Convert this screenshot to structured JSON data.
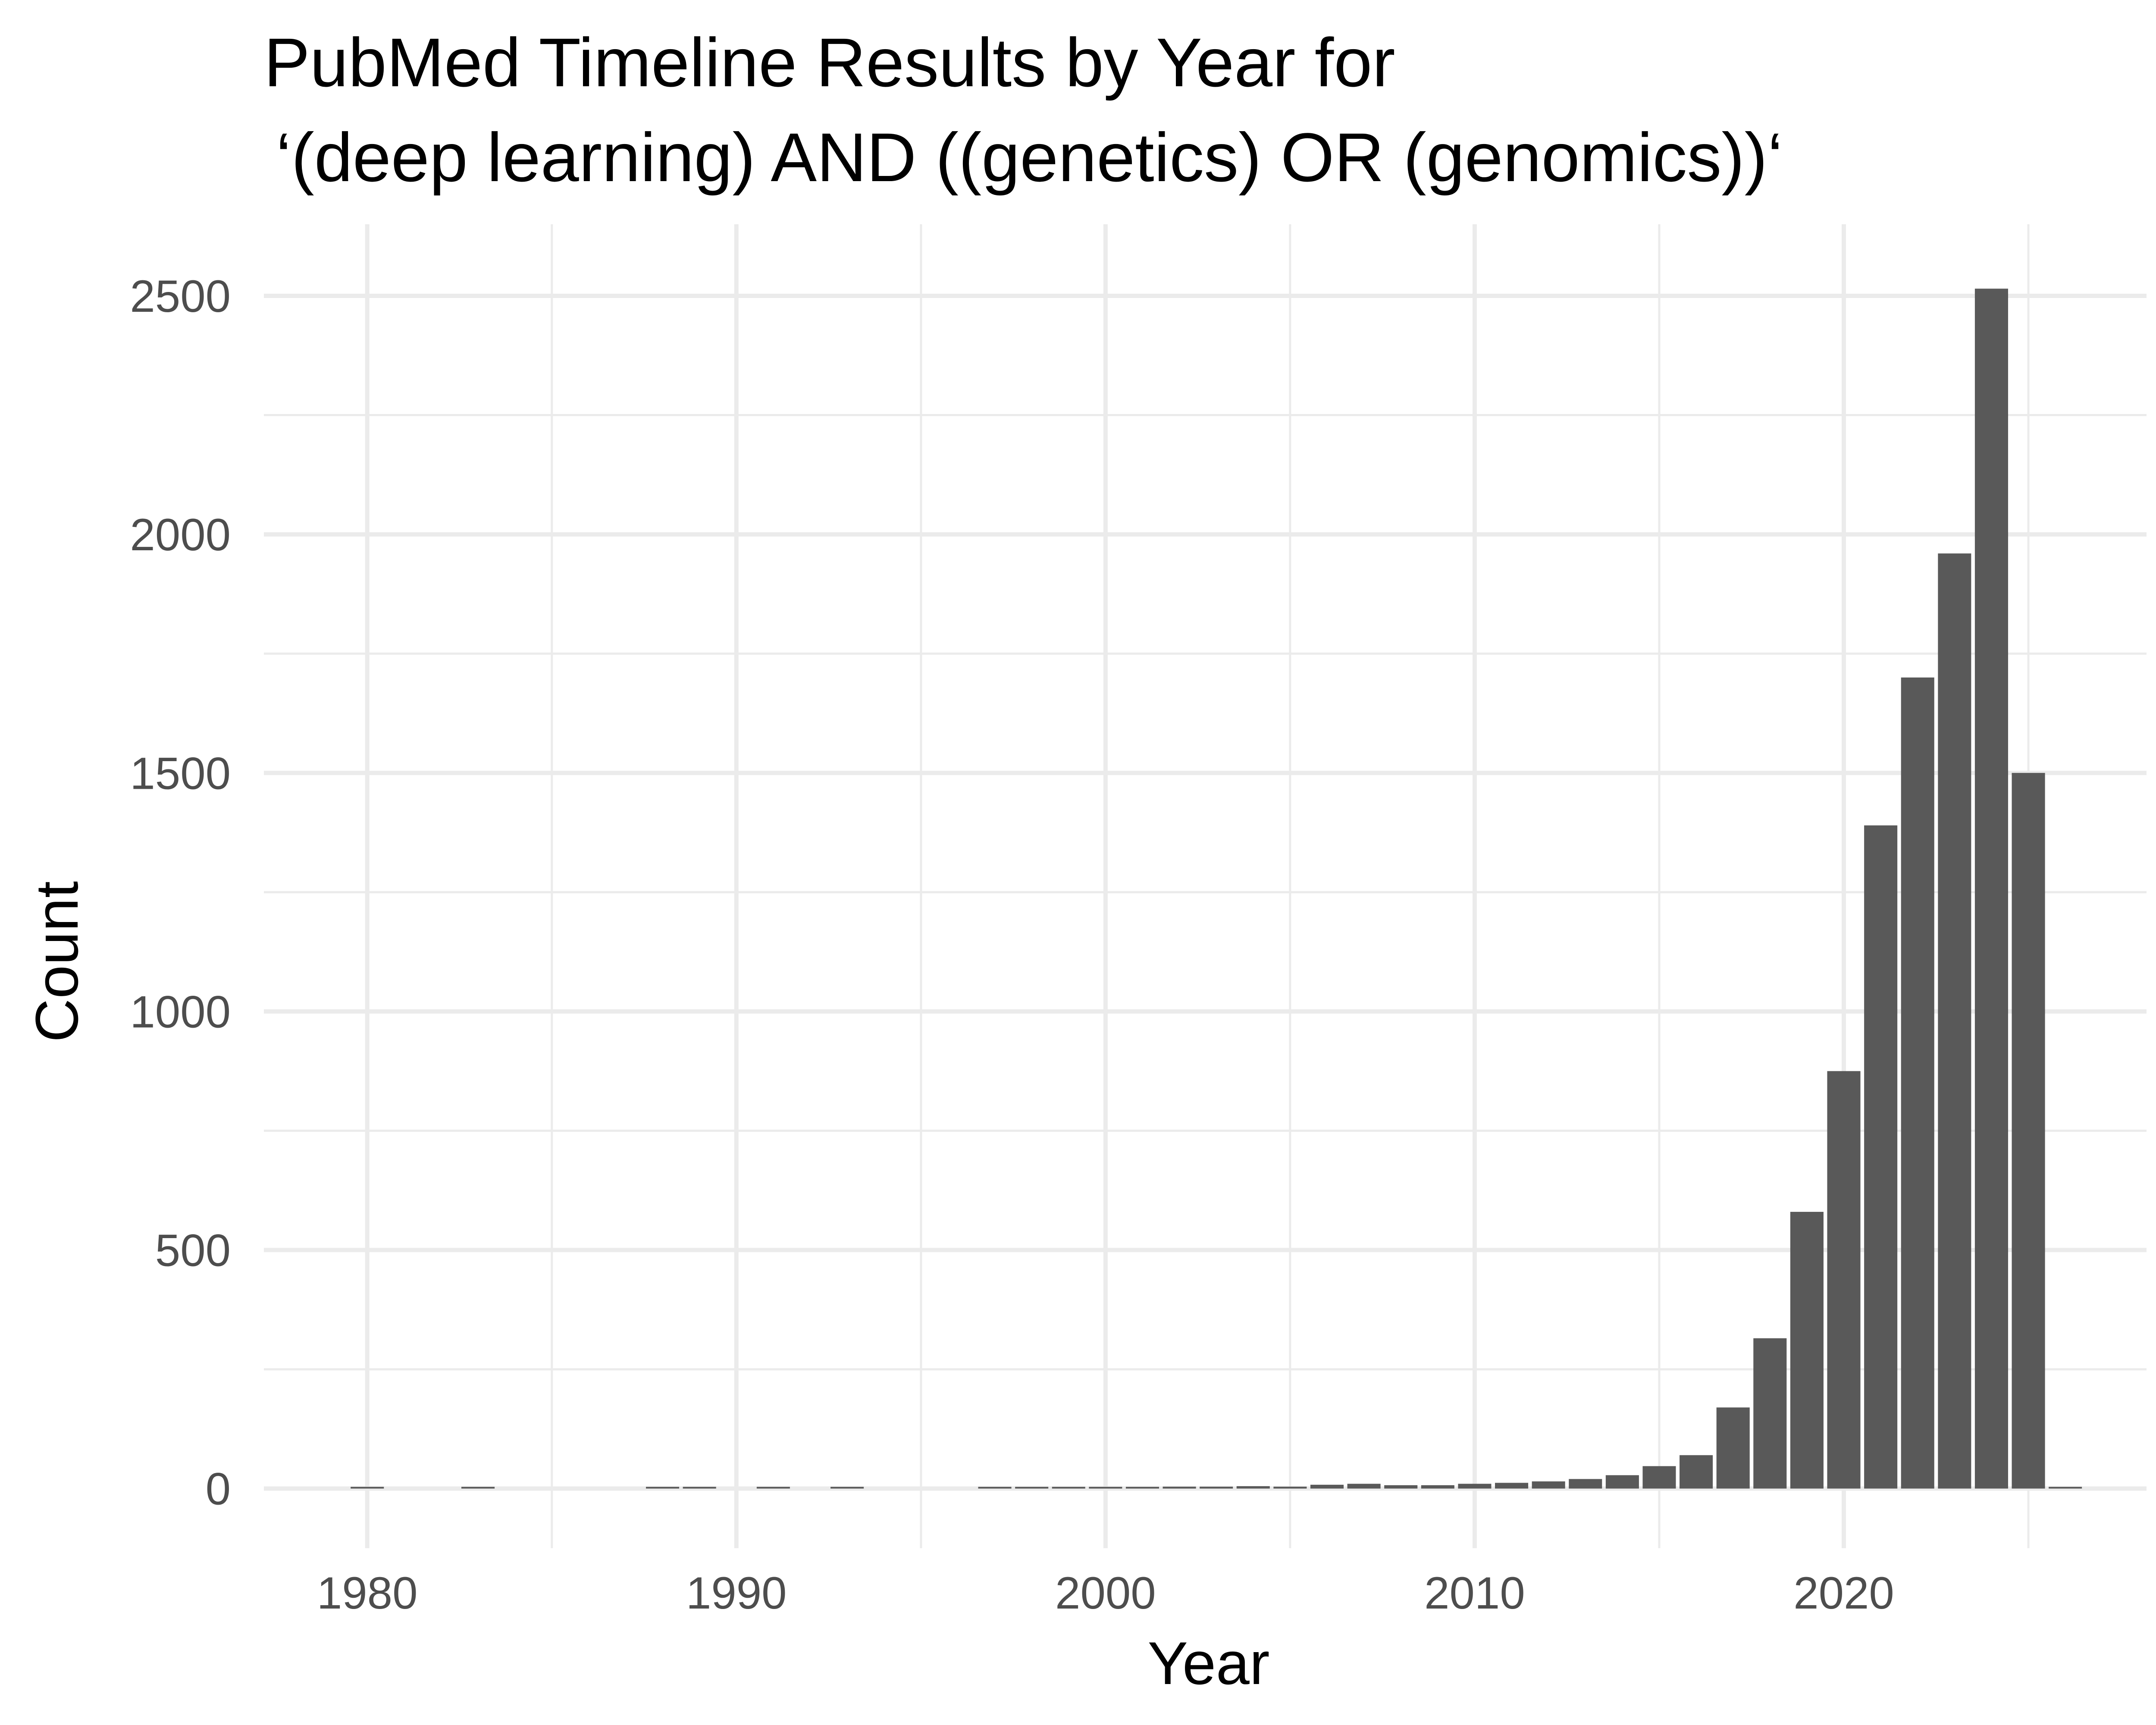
{
  "chart_data": {
    "type": "bar",
    "title_line1": "PubMed Timeline Results by Year for",
    "title_line2": "‘(deep learning) AND ((genetics) OR (genomics))‘",
    "xlabel": "Year",
    "ylabel": "Count",
    "xlim": [
      1977.2,
      2028.2
    ],
    "ylim": [
      -125,
      2650
    ],
    "x_ticks": [
      1980,
      1990,
      2000,
      2010,
      2020
    ],
    "x_minor": [
      1985,
      1995,
      2005,
      2015,
      2025
    ],
    "y_ticks": [
      0,
      500,
      1000,
      1500,
      2000,
      2500
    ],
    "y_minor": [
      250,
      750,
      1250,
      1750,
      2250
    ],
    "grid": true,
    "bar_color": "#595959",
    "x": [
      1980,
      1983,
      1988,
      1989,
      1991,
      1993,
      1997,
      1998,
      1999,
      2000,
      2001,
      2002,
      2003,
      2004,
      2005,
      2006,
      2007,
      2008,
      2009,
      2010,
      2011,
      2012,
      2013,
      2014,
      2015,
      2016,
      2017,
      2018,
      2019,
      2020,
      2021,
      2022,
      2023,
      2024,
      2025,
      2026
    ],
    "values": [
      1,
      1,
      1,
      1,
      1,
      2,
      1,
      2,
      2,
      3,
      3,
      4,
      4,
      5,
      4,
      8,
      10,
      7,
      7,
      10,
      12,
      15,
      20,
      28,
      47,
      70,
      170,
      315,
      580,
      875,
      1390,
      1700,
      1960,
      2515,
      1500,
      1
    ]
  }
}
